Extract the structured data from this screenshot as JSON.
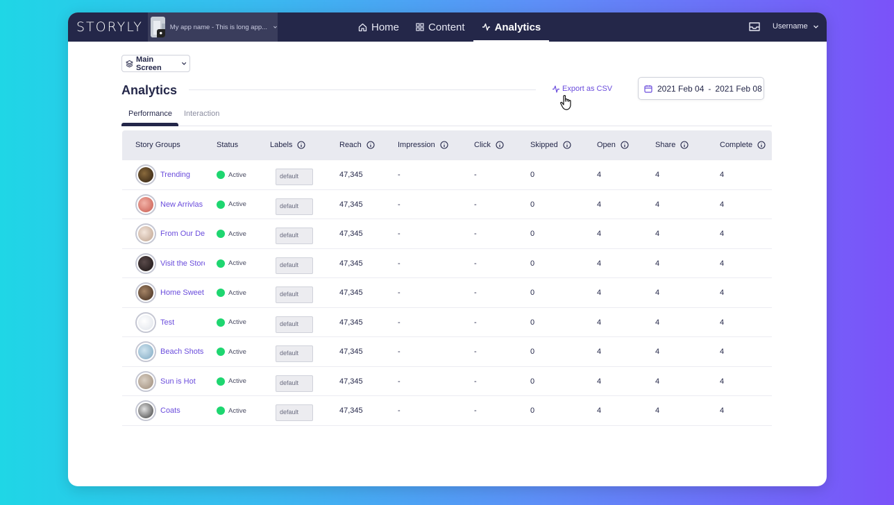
{
  "brand": {
    "logo_text": "STORYLY",
    "app_name": "My app name - This is long app...",
    "accent_color": "#6a4cdc",
    "topbar_color": "#242749",
    "active_status_color": "#1ed670"
  },
  "nav": {
    "items": [
      {
        "label": "Home",
        "icon": "home-icon"
      },
      {
        "label": "Content",
        "icon": "grid-icon"
      },
      {
        "label": "Analytics",
        "icon": "activity-icon",
        "active": true
      }
    ],
    "username": "Username"
  },
  "toolbar": {
    "screen_select": "Main Screen",
    "page_title": "Analytics",
    "export_label": "Export as CSV",
    "date_start": "2021 Feb 04",
    "date_separator": "-",
    "date_end": "2021 Feb 08"
  },
  "tabs": [
    {
      "label": "Performance",
      "active": true
    },
    {
      "label": "Interaction",
      "active": false
    }
  ],
  "table": {
    "columns": [
      "Story Groups",
      "Status",
      "Labels",
      "Reach",
      "Impression",
      "Click",
      "Skipped",
      "Open",
      "Share",
      "Complete"
    ],
    "rows": [
      {
        "name": "Trending",
        "status": "Active",
        "label": "default",
        "reach": "47,345",
        "impression": "-",
        "click": "-",
        "skipped": "0",
        "open": "4",
        "share": "4",
        "complete": "4"
      },
      {
        "name": "New Arrivlas",
        "status": "Active",
        "label": "default",
        "reach": "47,345",
        "impression": "-",
        "click": "-",
        "skipped": "0",
        "open": "4",
        "share": "4",
        "complete": "4"
      },
      {
        "name": "From Our Des",
        "status": "Active",
        "label": "default",
        "reach": "47,345",
        "impression": "-",
        "click": "-",
        "skipped": "0",
        "open": "4",
        "share": "4",
        "complete": "4"
      },
      {
        "name": "Visit the Store",
        "status": "Active",
        "label": "default",
        "reach": "47,345",
        "impression": "-",
        "click": "-",
        "skipped": "0",
        "open": "4",
        "share": "4",
        "complete": "4"
      },
      {
        "name": "Home Sweet",
        "status": "Active",
        "label": "default",
        "reach": "47,345",
        "impression": "-",
        "click": "-",
        "skipped": "0",
        "open": "4",
        "share": "4",
        "complete": "4"
      },
      {
        "name": "Test",
        "status": "Active",
        "label": "default",
        "reach": "47,345",
        "impression": "-",
        "click": "-",
        "skipped": "0",
        "open": "4",
        "share": "4",
        "complete": "4"
      },
      {
        "name": "Beach Shots",
        "status": "Active",
        "label": "default",
        "reach": "47,345",
        "impression": "-",
        "click": "-",
        "skipped": "0",
        "open": "4",
        "share": "4",
        "complete": "4"
      },
      {
        "name": "Sun is Hot",
        "status": "Active",
        "label": "default",
        "reach": "47,345",
        "impression": "-",
        "click": "-",
        "skipped": "0",
        "open": "4",
        "share": "4",
        "complete": "4"
      },
      {
        "name": "Coats",
        "status": "Active",
        "label": "default",
        "reach": "47,345",
        "impression": "-",
        "click": "-",
        "skipped": "0",
        "open": "4",
        "share": "4",
        "complete": "4"
      }
    ]
  }
}
